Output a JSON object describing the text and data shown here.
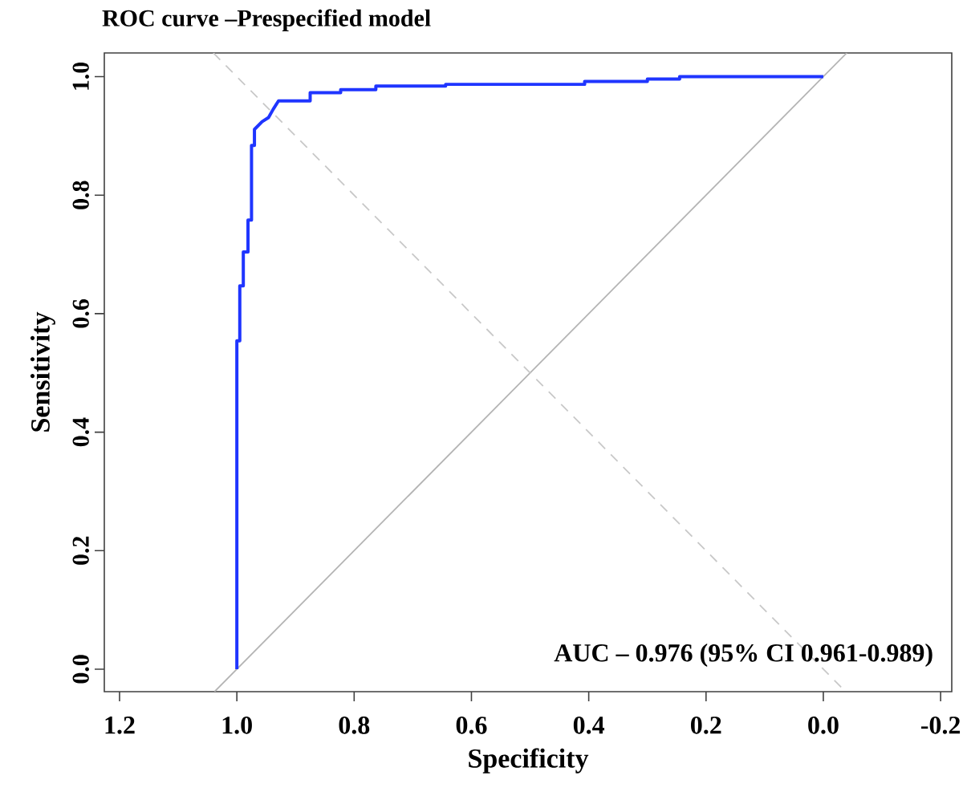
{
  "chart_data": {
    "type": "line",
    "title": "ROC curve –Prespecified model",
    "xlabel": "Specificity",
    "ylabel": "Sensitivity",
    "annotations": [
      "AUC – 0.976 (95% CI 0.961-0.989)"
    ],
    "xlim": [
      1.226,
      -0.219
    ],
    "ylim": [
      -0.038,
      1.04
    ],
    "xticks": [
      {
        "value": 1.2,
        "label": "1.2"
      },
      {
        "value": 1.0,
        "label": "1.0"
      },
      {
        "value": 0.8,
        "label": "0.8"
      },
      {
        "value": 0.6,
        "label": "0.6"
      },
      {
        "value": 0.4,
        "label": "0.4"
      },
      {
        "value": 0.2,
        "label": "0.2"
      },
      {
        "value": 0,
        "label": "0.0"
      },
      {
        "value": -0.2,
        "label": "-0.2"
      }
    ],
    "yticks": [
      {
        "value": 0,
        "label": "0.0"
      },
      {
        "value": 0.2,
        "label": "0.2"
      },
      {
        "value": 0.4,
        "label": "0.4"
      },
      {
        "value": 0.6,
        "label": "0.6"
      },
      {
        "value": 0.8,
        "label": "0.8"
      },
      {
        "value": 1.0,
        "label": "1.0"
      }
    ],
    "series": [
      {
        "color": "#b4b4b4",
        "line_style": "solid",
        "x": [
          1.038,
          -0.04
        ],
        "values": [
          -0.038,
          1.04
        ]
      },
      {
        "color": "#c8c8c8",
        "line_style": "dashed",
        "x": [
          1.04,
          -0.038
        ],
        "values": [
          1.04,
          -0.038
        ]
      },
      {
        "color": "#1f35ff",
        "line_style": "solid",
        "x": [
          1.0,
          1.0,
          0.995,
          0.995,
          0.989,
          0.989,
          0.981,
          0.981,
          0.975,
          0.975,
          0.97,
          0.97,
          0.957,
          0.946,
          0.938,
          0.929,
          0.875,
          0.875,
          0.823,
          0.823,
          0.763,
          0.763,
          0.644,
          0.644,
          0.407,
          0.407,
          0.3,
          0.3,
          0.245,
          0.245,
          0.0
        ],
        "values": [
          0.0,
          0.554,
          0.554,
          0.647,
          0.647,
          0.704,
          0.704,
          0.758,
          0.758,
          0.884,
          0.884,
          0.911,
          0.924,
          0.931,
          0.945,
          0.959,
          0.959,
          0.973,
          0.973,
          0.978,
          0.978,
          0.984,
          0.984,
          0.987,
          0.987,
          0.992,
          0.992,
          0.996,
          0.996,
          1.0,
          1.0
        ]
      }
    ]
  }
}
